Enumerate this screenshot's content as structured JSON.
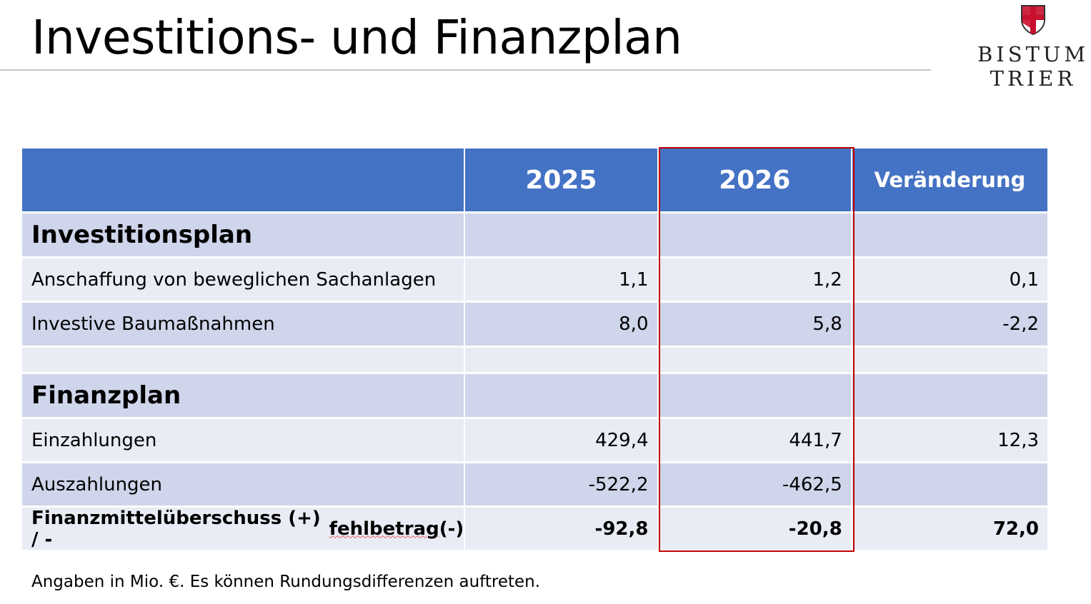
{
  "title": "Investitions- und Finanzplan",
  "logo": {
    "line1": "BISTUM",
    "line2": "TRIER",
    "colors": {
      "cross": "#C8102E"
    }
  },
  "table": {
    "headers": [
      "",
      "2025",
      "2026",
      "Veränderung"
    ],
    "rows": [
      {
        "label": "Investitionsplan",
        "v2025": "",
        "v2026": "",
        "change": ""
      },
      {
        "label": "Anschaffung von beweglichen Sachanlagen",
        "v2025": "1,1",
        "v2026": "1,2",
        "change": "0,1"
      },
      {
        "label": "Investive Baumaßnahmen",
        "v2025": "8,0",
        "v2026": "5,8",
        "change": "-2,2"
      },
      {
        "label": "",
        "v2025": "",
        "v2026": "",
        "change": ""
      },
      {
        "label": "Finanzplan",
        "v2025": "",
        "v2026": "",
        "change": ""
      },
      {
        "label": "Einzahlungen",
        "v2025": "429,4",
        "v2026": "441,7",
        "change": "12,3"
      },
      {
        "label": "Auszahlungen",
        "v2025": "-522,2",
        "v2026": "-462,5",
        "change": ""
      }
    ],
    "total": {
      "label_a": "Finanzmittelüberschuss (+) / -",
      "label_b": "fehlbetrag",
      "label_c": " (-)",
      "v2025": "-92,8",
      "v2026": "-20,8",
      "change": "72,0"
    }
  },
  "note": "Angaben in Mio. €. Es können Rundungsdifferenzen auftreten.",
  "colors": {
    "header": "#4472C4",
    "band_dark": "#CFD5EA",
    "band_light": "#E9EBF5",
    "highlight": "#C00000"
  }
}
